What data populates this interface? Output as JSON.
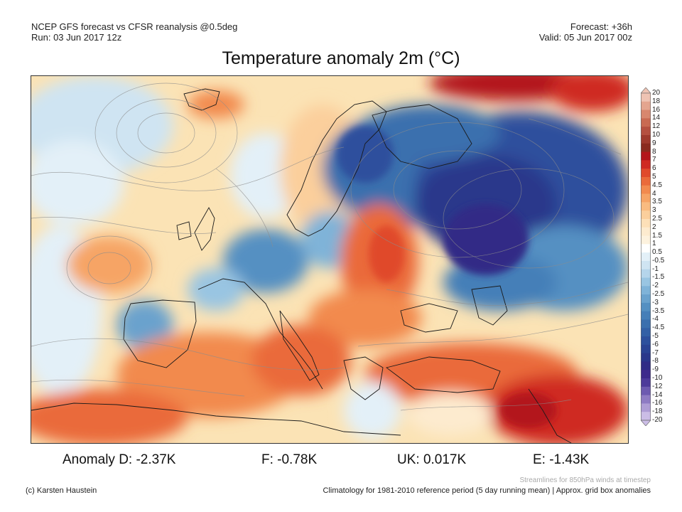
{
  "header": {
    "left_line1": "NCEP GFS forecast vs CFSR reanalysis @0.5deg",
    "left_line2": "Run: 03 Jun 2017 12z",
    "right_line1": "Forecast: +36h",
    "right_line2": "Valid: 05 Jun 2017 00z"
  },
  "title": "Temperature anomaly 2m (°C)",
  "colorbar": {
    "ticks": [
      "20",
      "18",
      "16",
      "14",
      "12",
      "10",
      "9",
      "8",
      "7",
      "6",
      "5",
      "4.5",
      "4",
      "3.5",
      "3",
      "2.5",
      "2",
      "1.5",
      "1",
      "0.5",
      "-0.5",
      "-1",
      "-1.5",
      "-2",
      "-2.5",
      "-3",
      "-3.5",
      "-4",
      "-4.5",
      "-5",
      "-6",
      "-7",
      "-8",
      "-9",
      "-10",
      "-12",
      "-14",
      "-16",
      "-18",
      "-20"
    ],
    "colors": [
      "#efc3b3",
      "#e4a58f",
      "#d8876e",
      "#c96a52",
      "#b55040",
      "#9f3a2d",
      "#8a2b1f",
      "#b3161b",
      "#cf2a22",
      "#e04a2c",
      "#ea6a3a",
      "#f28a4e",
      "#f6a465",
      "#f9bb80",
      "#fbcf9c",
      "#fde0b8",
      "#fdebcf",
      "#fdf2de",
      "#ffffff",
      "#e3f0f8",
      "#cfe4f2",
      "#b5d5eb",
      "#99c5e2",
      "#7fb3d8",
      "#6aa2cd",
      "#5490c2",
      "#457fb8",
      "#3a6fae",
      "#3360a6",
      "#2d509d",
      "#2a4394",
      "#2a378b",
      "#302c86",
      "#3d2a8c",
      "#4d3a9a",
      "#6d5ab0",
      "#8e7bc3",
      "#ae9dd5",
      "#cbbde6"
    ]
  },
  "anomalies": [
    {
      "label": "Anomaly D: -2.37K"
    },
    {
      "label": "F: -0.78K"
    },
    {
      "label": "UK: 0.017K"
    },
    {
      "label": "E: -1.43K"
    }
  ],
  "footer": {
    "stream_note": "Streamlines for 850hPa winds at timestep",
    "credit": "(c) Karsten Haustein",
    "clim_note": "Climatology for 1981-2010 reference period (5 day running mean) | Approx. grid box anomalies"
  }
}
